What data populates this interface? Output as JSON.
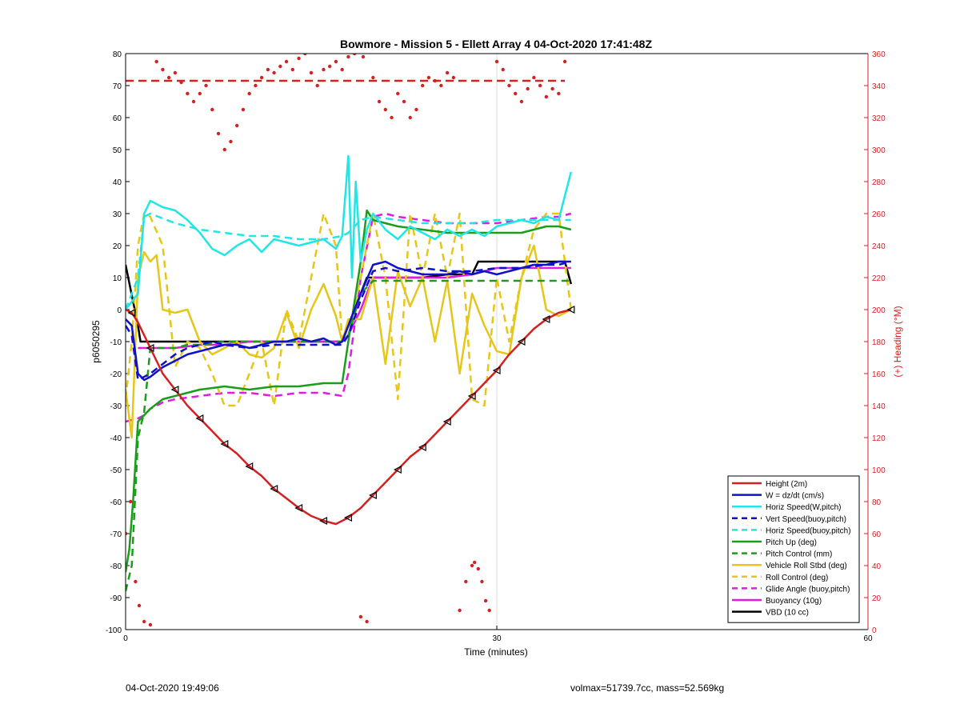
{
  "chart_data": {
    "type": "line",
    "title": "Bowmore - Mission 5 - Ellett Array 4 04-Oct-2020 17:41:48Z",
    "xlabel": "Time (minutes)",
    "ylabel_left": "p6050295",
    "ylabel_right": "(+) Heading (°M)",
    "xlim": [
      0,
      60
    ],
    "ylim_left": [
      -100,
      80
    ],
    "ylim_right": [
      0,
      360
    ],
    "xticks": [
      0,
      30,
      60
    ],
    "yticks_left": [
      -100,
      -90,
      -80,
      -70,
      -60,
      -50,
      -40,
      -30,
      -20,
      -10,
      0,
      10,
      20,
      30,
      40,
      50,
      60,
      70,
      80
    ],
    "yticks_right": [
      0,
      20,
      40,
      60,
      80,
      100,
      120,
      140,
      160,
      180,
      200,
      220,
      240,
      260,
      280,
      300,
      320,
      340,
      360
    ],
    "grid": "x only",
    "legend_position": "bottom-right",
    "colors": {
      "red": "#d62020",
      "blue": "#1010c8",
      "cyan": "#22e5e5",
      "green": "#1a9e1a",
      "yellow": "#e6c619",
      "magenta": "#e01ce0",
      "black": "#000000"
    },
    "series": [
      {
        "name": "Height (2m)",
        "color": "#d62020",
        "style": "solid",
        "markers": "triangle",
        "x": [
          0,
          0.5,
          1,
          2,
          3,
          4,
          5,
          6,
          7,
          8,
          9,
          10,
          11,
          12,
          13,
          14,
          15,
          16,
          17,
          18,
          19,
          20,
          21,
          22,
          23,
          24,
          25,
          26,
          27,
          28,
          29,
          30,
          31,
          32,
          33,
          34,
          35,
          36
        ],
        "y": [
          0,
          -1,
          -4,
          -12,
          -20,
          -25,
          -30,
          -34,
          -38,
          -42,
          -45,
          -49,
          -52,
          -56,
          -59,
          -62,
          -64.5,
          -66,
          -67,
          -65,
          -62,
          -58,
          -54,
          -50,
          -46,
          -43,
          -39,
          -35,
          -31,
          -27,
          -23,
          -19,
          -14,
          -10,
          -6,
          -3,
          -1,
          0
        ]
      },
      {
        "name": "W = dz/dt (cm/s)",
        "color": "#1010c8",
        "style": "solid",
        "x": [
          0,
          0.5,
          1,
          1.5,
          2,
          3,
          4,
          5,
          6,
          7,
          8,
          9,
          10,
          11,
          12,
          13,
          14,
          15,
          16,
          17,
          17.5,
          18,
          18.5,
          19,
          20,
          21,
          22,
          23,
          24,
          25,
          26,
          27,
          28,
          29,
          30,
          31,
          32,
          33,
          34,
          35,
          36
        ],
        "y": [
          -3,
          -5,
          -20,
          -22,
          -21,
          -18,
          -16,
          -14,
          -13,
          -12,
          -11,
          -11,
          -12,
          -11,
          -10,
          -10,
          -9,
          -10,
          -9,
          -11,
          -10,
          -5,
          0,
          5,
          14,
          15,
          13,
          12,
          11,
          11,
          11,
          12,
          11,
          12,
          11,
          12,
          13,
          14,
          14,
          15,
          15
        ]
      },
      {
        "name": "Horiz Speed(W,pitch)",
        "color": "#22e5e5",
        "style": "solid",
        "x": [
          0,
          1,
          1.5,
          2,
          3,
          4,
          5,
          6,
          7,
          8,
          9,
          10,
          11,
          12,
          13,
          14,
          15,
          16,
          17,
          17.5,
          18,
          18.3,
          18.6,
          19,
          19.5,
          20,
          21,
          22,
          23,
          24,
          25,
          26,
          27,
          28,
          29,
          30,
          31,
          32,
          33,
          34,
          35,
          36
        ],
        "y": [
          0,
          5,
          30,
          34,
          32,
          31,
          28,
          24,
          19,
          17,
          20,
          22,
          18,
          22,
          21,
          20,
          21,
          22,
          19,
          23,
          48,
          10,
          40,
          15,
          25,
          30,
          25,
          22,
          26,
          24,
          22,
          25,
          23,
          25,
          23,
          26,
          27,
          28,
          27,
          29,
          28,
          43
        ]
      },
      {
        "name": "Vert Speed(buoy,pitch)",
        "color": "#1010c8",
        "style": "dashed",
        "x": [
          0,
          0.5,
          1,
          2,
          3,
          4,
          5,
          6,
          7,
          8,
          10,
          12,
          14,
          16,
          17.5,
          18,
          19,
          20,
          21,
          22,
          24,
          26,
          28,
          30,
          32,
          34,
          35,
          36
        ],
        "y": [
          -5,
          -8,
          -22,
          -20,
          -17,
          -14,
          -12,
          -11,
          -10,
          -11,
          -12,
          -11,
          -11,
          -11,
          -11,
          -8,
          3,
          12,
          13,
          12,
          13,
          12,
          12,
          13,
          13,
          14,
          14,
          15
        ]
      },
      {
        "name": "Horiz Speed(buoy,pitch)",
        "color": "#22e5e5",
        "style": "dashed",
        "x": [
          0,
          1,
          1.5,
          2,
          4,
          6,
          8,
          10,
          12,
          14,
          16,
          17.5,
          18,
          19,
          20,
          22,
          24,
          26,
          28,
          30,
          32,
          34,
          35,
          36
        ],
        "y": [
          0,
          10,
          29,
          30,
          27,
          25,
          24,
          23,
          23,
          22,
          22,
          23,
          24,
          28,
          29,
          28,
          27,
          27,
          27,
          28,
          28,
          28,
          28,
          28
        ]
      },
      {
        "name": "Pitch Up (deg)",
        "color": "#1a9e1a",
        "style": "solid",
        "x": [
          0,
          0.3,
          0.6,
          1,
          1.5,
          2,
          3,
          4,
          5,
          6,
          8,
          10,
          12,
          14,
          16,
          17.5,
          18,
          19,
          19.5,
          20,
          21,
          22,
          24,
          26,
          28,
          30,
          32,
          34,
          35,
          36
        ],
        "y": [
          -82,
          -75,
          -60,
          -35,
          -33,
          -31,
          -28,
          -27,
          -26,
          -25,
          -24,
          -25,
          -24,
          -24,
          -23,
          -23,
          -10,
          15,
          31,
          28,
          27,
          26,
          25,
          24,
          24,
          24,
          24,
          26,
          26,
          25
        ]
      },
      {
        "name": "Pitch Control (mm)",
        "color": "#1a9e1a",
        "style": "dashed",
        "x": [
          0,
          0.5,
          1,
          1.5,
          2,
          4,
          5,
          6,
          8,
          10,
          12,
          14,
          16,
          17.5,
          18,
          19,
          20,
          22,
          24,
          26,
          28,
          30,
          32,
          34,
          35,
          36
        ],
        "y": [
          -88,
          -80,
          -40,
          -32,
          -12,
          -12,
          -11,
          -11,
          -10,
          -10,
          -10,
          -10,
          -10,
          -10,
          -8,
          5,
          9,
          9,
          9,
          9,
          9,
          9,
          9,
          9,
          9,
          9
        ]
      },
      {
        "name": "Vehicle Roll Stbd (deg)",
        "color": "#e6c619",
        "style": "solid",
        "x": [
          0,
          0.5,
          1,
          1.5,
          2,
          2.5,
          3,
          4,
          5,
          6,
          7,
          8,
          9,
          10,
          11,
          12,
          13,
          14,
          15,
          16,
          17,
          17.5,
          18,
          19,
          20,
          21,
          22,
          23,
          24,
          25,
          26,
          27,
          28,
          29,
          30,
          31,
          32,
          33,
          34,
          35,
          36
        ],
        "y": [
          -25,
          -40,
          10,
          18,
          15,
          17,
          0,
          -1,
          0,
          -10,
          -14,
          -12,
          -10,
          -14,
          -15,
          -12,
          -1,
          -12,
          0,
          8,
          -2,
          -10,
          -3,
          -3,
          10,
          -17,
          12,
          1,
          10,
          -10,
          9,
          -20,
          5,
          -5,
          -13,
          -14,
          10,
          20,
          0,
          -2,
          0
        ]
      },
      {
        "name": "Roll Control (deg)",
        "color": "#e6c619",
        "style": "dashed",
        "x": [
          0,
          0.5,
          1,
          1.5,
          2,
          3,
          4,
          5,
          6,
          7,
          8,
          9,
          10,
          11,
          12,
          13,
          14,
          15,
          16,
          17,
          17.5,
          18,
          19,
          20,
          21,
          22,
          23,
          24,
          25,
          26,
          27,
          28,
          29,
          30,
          31,
          32,
          33,
          34,
          35,
          36
        ],
        "y": [
          -28,
          -10,
          20,
          30,
          29,
          20,
          -18,
          -10,
          -12,
          -20,
          -30,
          -30,
          -20,
          -10,
          -30,
          0,
          -10,
          10,
          30,
          20,
          -10,
          -8,
          10,
          30,
          10,
          -28,
          30,
          10,
          30,
          10,
          30,
          -28,
          -30,
          10,
          -10,
          10,
          25,
          30,
          30,
          0
        ]
      },
      {
        "name": "Glide Angle (buoy,pitch)",
        "color": "#e01ce0",
        "style": "dashed",
        "x": [
          0,
          1,
          1.5,
          2,
          3,
          4,
          6,
          8,
          10,
          12,
          14,
          16,
          17.5,
          18,
          19,
          20,
          21,
          22,
          24,
          26,
          28,
          30,
          32,
          34,
          35,
          36
        ],
        "y": [
          -35,
          -34,
          -33,
          -31,
          -29,
          -28,
          -27,
          -26,
          -26,
          -27,
          -26,
          -26,
          -27,
          -20,
          10,
          29,
          30,
          29,
          28,
          27,
          27,
          27,
          28,
          29,
          29,
          30
        ]
      },
      {
        "name": "Buoyancy (10g)",
        "color": "#e01ce0",
        "style": "solid",
        "x": [
          1,
          2,
          4,
          6,
          8,
          10,
          12,
          14,
          16,
          17.5,
          18,
          19,
          20,
          22,
          24,
          26,
          28,
          30,
          32,
          34,
          35,
          36
        ],
        "y": [
          -12,
          -12,
          -12,
          -11,
          -11,
          -10,
          -10,
          -10,
          -10,
          -10,
          -8,
          0,
          10,
          10,
          10,
          10,
          11,
          13,
          13,
          13,
          13,
          13
        ]
      },
      {
        "name": "VBD (10 cc)",
        "color": "#000000",
        "style": "solid",
        "x": [
          0,
          1,
          1.2,
          2,
          4,
          6,
          8,
          10,
          12,
          14,
          16,
          17.5,
          18,
          19,
          19.5,
          20,
          22,
          24,
          26,
          28,
          28.5,
          30,
          32,
          34,
          35.5,
          36
        ],
        "y": [
          14,
          -5,
          -10,
          -10,
          -10,
          -10,
          -10,
          -10,
          -10,
          -10,
          -10,
          -10,
          -5,
          5,
          10,
          10,
          10,
          10,
          11,
          11,
          15,
          15,
          15,
          15,
          15,
          8
        ]
      }
    ],
    "heading_scatter": {
      "axis": "right",
      "color": "#d62020",
      "reference_line": 343,
      "x": [
        0,
        0.4,
        0.8,
        1.1,
        1.5,
        2,
        2.5,
        3,
        3.5,
        4,
        4.5,
        5,
        5.5,
        6,
        6.5,
        7,
        7.5,
        8,
        8.5,
        9,
        9.5,
        10,
        10.5,
        11,
        11.5,
        12,
        12.5,
        13,
        13.5,
        14,
        14.5,
        15,
        15.5,
        16,
        16.5,
        17,
        17.5,
        18,
        18.5,
        19,
        19.2,
        19.5,
        20,
        20.5,
        21,
        21.5,
        22,
        22.5,
        23,
        23.5,
        24,
        24.5,
        25,
        25.5,
        26,
        26.5,
        27,
        27.5,
        28,
        28.2,
        28.5,
        28.8,
        29.1,
        29.4,
        30,
        30.5,
        31,
        31.5,
        32,
        32.5,
        33,
        33.5,
        34,
        34.5,
        35,
        35.5
      ],
      "y": [
        60,
        80,
        30,
        15,
        5,
        3,
        355,
        350,
        345,
        348,
        342,
        335,
        330,
        335,
        340,
        325,
        310,
        300,
        305,
        315,
        325,
        335,
        340,
        345,
        350,
        348,
        352,
        355,
        350,
        357,
        360,
        348,
        340,
        350,
        352,
        355,
        350,
        358,
        360,
        8,
        358,
        5,
        345,
        330,
        325,
        320,
        335,
        330,
        320,
        325,
        340,
        345,
        343,
        340,
        348,
        345,
        12,
        30,
        40,
        42,
        38,
        30,
        18,
        12,
        355,
        350,
        340,
        335,
        330,
        338,
        345,
        340,
        333,
        338,
        335,
        355
      ]
    }
  },
  "footer": {
    "timestamp": "04-Oct-2020 19:49:06",
    "volume_mass": "volmax=51739.7cc, mass=52.569kg"
  }
}
